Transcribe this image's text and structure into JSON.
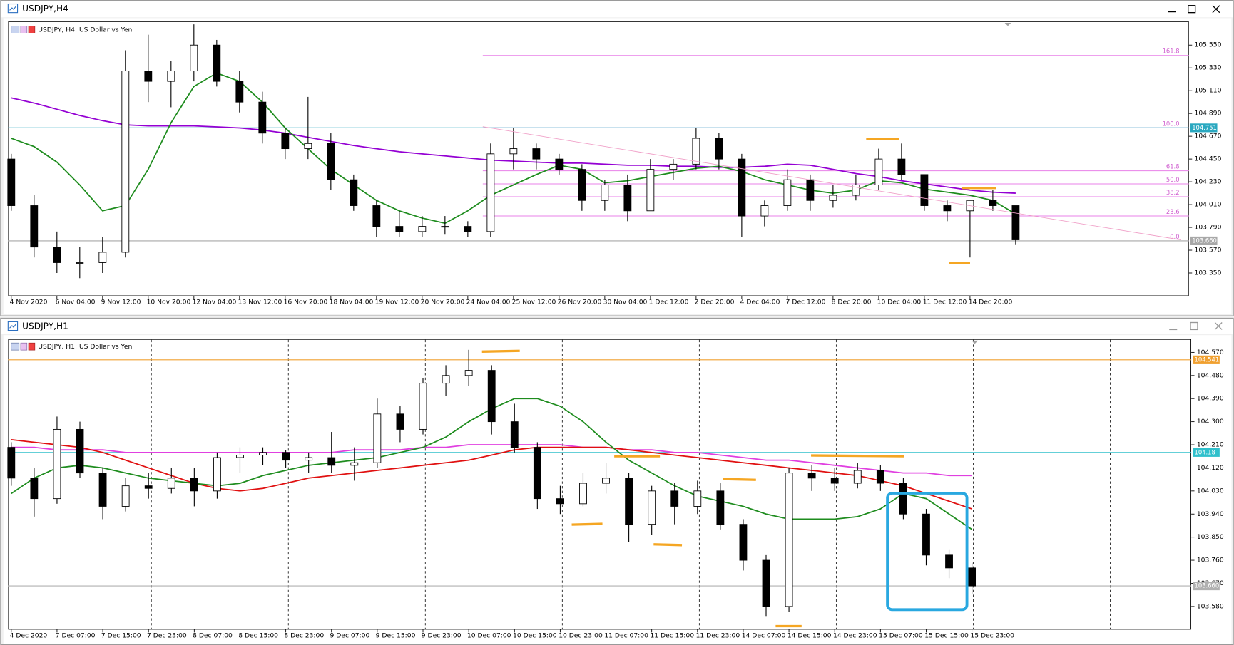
{
  "chart_data": [
    {
      "type": "candlestick",
      "window_title": "USDJPY,H4",
      "title": "USDJPY, H4:  US Dollar vs Yen",
      "up_color": "#ffffff",
      "down_color": "#000000",
      "open": [
        104.45,
        104.0,
        103.6,
        103.45,
        103.45,
        103.55,
        105.3,
        105.2,
        105.3,
        105.55,
        105.2,
        105.0,
        104.7,
        104.55,
        104.6,
        104.25,
        104.0,
        103.8,
        103.75,
        103.8,
        103.8,
        103.75,
        104.5,
        104.55,
        104.45,
        104.35,
        104.05,
        104.2,
        103.95,
        104.35,
        104.4,
        104.65,
        104.45,
        103.9,
        104.0,
        104.25,
        104.05,
        104.1,
        104.2,
        104.45,
        104.3,
        104.0,
        103.95,
        104.05,
        104.0
      ],
      "high": [
        104.5,
        104.1,
        103.75,
        103.6,
        103.7,
        105.5,
        105.65,
        105.4,
        105.75,
        105.6,
        105.3,
        105.1,
        104.75,
        105.05,
        104.7,
        104.3,
        104.05,
        103.95,
        103.9,
        103.9,
        103.85,
        104.6,
        104.75,
        104.6,
        104.5,
        104.4,
        104.25,
        104.3,
        104.45,
        104.45,
        104.75,
        104.7,
        104.5,
        104.05,
        104.35,
        104.3,
        104.2,
        104.3,
        104.55,
        104.6,
        104.3,
        104.05,
        104.05,
        104.15,
        104.0
      ],
      "low": [
        103.95,
        103.5,
        103.35,
        103.3,
        103.35,
        103.5,
        105.0,
        104.95,
        105.2,
        105.15,
        104.9,
        104.6,
        104.45,
        104.45,
        104.15,
        103.95,
        103.7,
        103.7,
        103.7,
        103.72,
        103.7,
        103.7,
        104.35,
        104.35,
        104.3,
        103.95,
        103.95,
        103.85,
        103.95,
        104.25,
        104.35,
        104.35,
        103.7,
        103.8,
        103.95,
        103.95,
        103.98,
        104.05,
        104.15,
        104.25,
        103.95,
        103.85,
        103.5,
        103.95,
        103.62
      ],
      "close": [
        104.0,
        103.6,
        103.45,
        103.45,
        103.55,
        105.3,
        105.2,
        105.3,
        105.55,
        105.2,
        105.0,
        104.7,
        104.55,
        104.6,
        104.25,
        104.0,
        103.8,
        103.75,
        103.8,
        103.8,
        103.75,
        104.5,
        104.55,
        104.45,
        104.35,
        104.05,
        104.2,
        103.95,
        104.35,
        104.4,
        104.65,
        104.45,
        103.9,
        104.0,
        104.25,
        104.05,
        104.1,
        104.2,
        104.45,
        104.3,
        104.0,
        103.95,
        104.05,
        104.0,
        103.67
      ],
      "series": [
        {
          "color": "#9400d3",
          "values": [
            105.04,
            104.99,
            104.93,
            104.87,
            104.82,
            104.78,
            104.77,
            104.77,
            104.77,
            104.76,
            104.75,
            104.73,
            104.7,
            104.66,
            104.62,
            104.58,
            104.55,
            104.52,
            104.5,
            104.48,
            104.46,
            104.44,
            104.43,
            104.42,
            104.41,
            104.41,
            104.4,
            104.39,
            104.39,
            104.38,
            104.38,
            104.37,
            104.37,
            104.38,
            104.4,
            104.39,
            104.35,
            104.31,
            104.28,
            104.24,
            104.21,
            104.18,
            104.15,
            104.13,
            104.12
          ]
        },
        {
          "color": "#1e8c1e",
          "values": [
            104.65,
            104.57,
            104.42,
            104.2,
            103.95,
            104.0,
            104.35,
            104.8,
            105.15,
            105.28,
            105.2,
            105.0,
            104.75,
            104.55,
            104.35,
            104.2,
            104.05,
            103.95,
            103.88,
            103.83,
            103.95,
            104.1,
            104.2,
            104.3,
            104.39,
            104.35,
            104.22,
            104.24,
            104.28,
            104.32,
            104.36,
            104.38,
            104.33,
            104.25,
            104.2,
            104.15,
            104.12,
            104.15,
            104.24,
            104.22,
            104.16,
            104.13,
            104.1,
            104.05,
            103.92
          ]
        }
      ],
      "hlines": [
        {
          "value": 104.751,
          "color": "#2aa8c0"
        },
        {
          "value": 103.66,
          "label": "103.660",
          "color": "#a8a8a8"
        }
      ],
      "fib_levels": [
        {
          "label": "161.8",
          "value": 105.45
        },
        {
          "label": "100.0",
          "value": 104.751
        },
        {
          "label": "61.8",
          "value": 104.336
        },
        {
          "label": "50.0",
          "value": 104.21
        },
        {
          "label": "38.2",
          "value": 104.086
        },
        {
          "label": "23.6",
          "value": 103.9
        },
        {
          "label": "0.0",
          "value": 103.66
        }
      ],
      "fib_color": "#e880e8",
      "xlim": [
        -0.14,
        51.59
      ],
      "xticks": [
        {
          "value": 0,
          "label": "4 Nov 2020"
        },
        {
          "value": 2,
          "label": "6 Nov 04:00"
        },
        {
          "value": 4,
          "label": "9 Nov 12:00"
        },
        {
          "value": 6,
          "label": "10 Nov 20:00"
        },
        {
          "value": 8,
          "label": "12 Nov 04:00"
        },
        {
          "value": 10,
          "label": "13 Nov 12:00"
        },
        {
          "value": 12,
          "label": "16 Nov 20:00"
        },
        {
          "value": 14,
          "label": "18 Nov 04:00"
        },
        {
          "value": 16,
          "label": "19 Nov 12:00"
        },
        {
          "value": 18,
          "label": "20 Nov 20:00"
        },
        {
          "value": 20,
          "label": "24 Nov 04:00"
        },
        {
          "value": 22,
          "label": "25 Nov 12:00"
        },
        {
          "value": 24,
          "label": "26 Nov 20:00"
        },
        {
          "value": 26,
          "label": "30 Nov 04:00"
        },
        {
          "value": 28,
          "label": "1 Dec 12:00"
        },
        {
          "value": 30,
          "label": "2 Dec 20:00"
        },
        {
          "value": 32,
          "label": "4 Dec 04:00"
        },
        {
          "value": 34,
          "label": "7 Dec 12:00"
        },
        {
          "value": 36,
          "label": "8 Dec 20:00"
        },
        {
          "value": 38,
          "label": "10 Dec 04:00"
        },
        {
          "value": 40,
          "label": "11 Dec 12:00"
        },
        {
          "value": 42,
          "label": "14 Dec 20:00"
        }
      ],
      "ylim": [
        103.13,
        105.78
      ],
      "yticks": [
        {
          "value": 105.55,
          "label": "105.550"
        },
        {
          "value": 105.33,
          "label": "105.330"
        },
        {
          "value": 105.11,
          "label": "105.110"
        },
        {
          "value": 104.89,
          "label": "104.890"
        },
        {
          "value": 104.67,
          "label": "104.670"
        },
        {
          "value": 104.45,
          "label": "104.450"
        },
        {
          "value": 104.23,
          "label": "104.230"
        },
        {
          "value": 104.01,
          "label": "104.010"
        },
        {
          "value": 103.79,
          "label": "103.790"
        },
        {
          "value": 103.57,
          "label": "103.570"
        },
        {
          "value": 103.35,
          "label": "103.350"
        }
      ]
    },
    {
      "type": "candlestick",
      "window_title": "USDJPY,H1",
      "title": "USDJPY, H1:  US Dollar vs Yen",
      "up_color": "#ffffff",
      "down_color": "#000000",
      "open": [
        104.2,
        104.08,
        104.0,
        104.27,
        104.1,
        103.97,
        104.05,
        104.04,
        104.08,
        104.03,
        104.16,
        104.17,
        104.18,
        104.15,
        104.16,
        104.13,
        104.14,
        104.33,
        104.27,
        104.45,
        104.48,
        104.5,
        104.3,
        104.2,
        104.0,
        103.98,
        104.06,
        104.08,
        103.9,
        104.03,
        103.97,
        104.03,
        103.9,
        103.76,
        103.58,
        104.1,
        104.08,
        104.06,
        104.11,
        104.06,
        103.94,
        103.78,
        103.73
      ],
      "high": [
        104.22,
        104.12,
        104.32,
        104.3,
        104.12,
        104.08,
        104.1,
        104.12,
        104.12,
        104.18,
        104.2,
        104.2,
        104.19,
        104.18,
        104.26,
        104.2,
        104.39,
        104.36,
        104.47,
        104.52,
        104.58,
        104.52,
        104.37,
        104.22,
        104.05,
        104.1,
        104.14,
        104.1,
        104.05,
        104.06,
        104.07,
        104.06,
        103.92,
        103.78,
        104.12,
        104.13,
        104.12,
        104.14,
        104.13,
        104.08,
        103.96,
        103.8,
        103.75
      ],
      "low": [
        104.05,
        103.93,
        103.98,
        104.08,
        103.92,
        103.95,
        104.0,
        104.02,
        103.97,
        104.0,
        104.1,
        104.13,
        104.12,
        104.1,
        104.1,
        104.07,
        104.12,
        104.22,
        104.25,
        104.4,
        104.44,
        104.25,
        104.18,
        103.96,
        103.94,
        103.97,
        104.02,
        103.83,
        103.86,
        103.9,
        103.94,
        103.88,
        103.72,
        103.54,
        103.56,
        104.03,
        104.03,
        104.04,
        104.03,
        103.92,
        103.74,
        103.69,
        103.63
      ],
      "close": [
        104.08,
        104.0,
        104.27,
        104.1,
        103.97,
        104.05,
        104.04,
        104.08,
        104.03,
        104.16,
        104.17,
        104.18,
        104.15,
        104.16,
        104.13,
        104.14,
        104.33,
        104.27,
        104.45,
        104.48,
        104.5,
        104.3,
        104.2,
        104.0,
        103.98,
        104.06,
        104.08,
        103.9,
        104.03,
        103.97,
        104.03,
        103.9,
        103.76,
        103.58,
        104.1,
        104.08,
        104.06,
        104.11,
        104.06,
        103.94,
        103.78,
        103.73,
        103.66
      ],
      "series": [
        {
          "color": "#e040e0",
          "values": [
            104.2,
            104.2,
            104.19,
            104.19,
            104.19,
            104.18,
            104.18,
            104.18,
            104.18,
            104.18,
            104.18,
            104.18,
            104.18,
            104.18,
            104.18,
            104.19,
            104.19,
            104.19,
            104.2,
            104.2,
            104.21,
            104.21,
            104.21,
            104.21,
            104.21,
            104.2,
            104.2,
            104.19,
            104.19,
            104.18,
            104.18,
            104.17,
            104.16,
            104.15,
            104.15,
            104.14,
            104.13,
            104.12,
            104.11,
            104.1,
            104.1,
            104.09,
            104.09
          ]
        },
        {
          "color": "#e01010",
          "values": [
            104.23,
            104.22,
            104.21,
            104.2,
            104.18,
            104.15,
            104.12,
            104.09,
            104.06,
            104.04,
            104.03,
            104.04,
            104.06,
            104.08,
            104.09,
            104.1,
            104.11,
            104.12,
            104.13,
            104.14,
            104.15,
            104.17,
            104.19,
            104.2,
            104.2,
            104.2,
            104.2,
            104.19,
            104.18,
            104.17,
            104.16,
            104.15,
            104.14,
            104.13,
            104.12,
            104.11,
            104.1,
            104.09,
            104.07,
            104.05,
            104.02,
            103.99,
            103.96
          ]
        },
        {
          "color": "#1e8c1e",
          "values": [
            104.02,
            104.08,
            104.12,
            104.13,
            104.12,
            104.1,
            104.08,
            104.07,
            104.06,
            104.05,
            104.06,
            104.09,
            104.11,
            104.13,
            104.14,
            104.15,
            104.16,
            104.18,
            104.2,
            104.24,
            104.3,
            104.35,
            104.39,
            104.39,
            104.36,
            104.3,
            104.22,
            104.15,
            104.1,
            104.05,
            104.01,
            103.99,
            103.97,
            103.94,
            103.92,
            103.92,
            103.92,
            103.93,
            103.96,
            104.02,
            104.0,
            103.94,
            103.88
          ]
        }
      ],
      "hlines": [
        {
          "value": 104.541,
          "color": "#f0a030"
        },
        {
          "value": 104.18,
          "color": "#30c0cc"
        },
        {
          "value": 103.66,
          "label": "103.660",
          "color": "#b0b0b0"
        }
      ],
      "xlim": [
        -0.14,
        51.59
      ],
      "xticks": [
        {
          "value": 0,
          "label": "4 Dec 2020"
        },
        {
          "value": 2,
          "label": "7 Dec 07:00"
        },
        {
          "value": 4,
          "label": "7 Dec 15:00"
        },
        {
          "value": 6,
          "label": "7 Dec 23:00"
        },
        {
          "value": 8,
          "label": "8 Dec 07:00"
        },
        {
          "value": 10,
          "label": "8 Dec 15:00"
        },
        {
          "value": 12,
          "label": "8 Dec 23:00"
        },
        {
          "value": 14,
          "label": "9 Dec 07:00"
        },
        {
          "value": 16,
          "label": "9 Dec 15:00"
        },
        {
          "value": 18,
          "label": "9 Dec 23:00"
        },
        {
          "value": 20,
          "label": "10 Dec 07:00"
        },
        {
          "value": 22,
          "label": "10 Dec 15:00"
        },
        {
          "value": 24,
          "label": "10 Dec 23:00"
        },
        {
          "value": 26,
          "label": "11 Dec 07:00"
        },
        {
          "value": 28,
          "label": "11 Dec 15:00"
        },
        {
          "value": 30,
          "label": "11 Dec 23:00"
        },
        {
          "value": 32,
          "label": "14 Dec 07:00"
        },
        {
          "value": 34,
          "label": "14 Dec 15:00"
        },
        {
          "value": 36,
          "label": "14 Dec 23:00"
        },
        {
          "value": 38,
          "label": "15 Dec 07:00"
        },
        {
          "value": 40,
          "label": "15 Dec 15:00"
        },
        {
          "value": 42,
          "label": "15 Dec 23:00"
        }
      ],
      "ylim": [
        103.491,
        104.622
      ],
      "yticks": [
        {
          "value": 104.57,
          "label": "104.570"
        },
        {
          "value": 104.48,
          "label": "104.480"
        },
        {
          "value": 104.39,
          "label": "104.390"
        },
        {
          "value": 104.3,
          "label": "104.300"
        },
        {
          "value": 104.21,
          "label": "104.210"
        },
        {
          "value": 104.12,
          "label": "104.120"
        },
        {
          "value": 104.03,
          "label": "104.030"
        },
        {
          "value": 103.94,
          "label": "103.940"
        },
        {
          "value": 103.85,
          "label": "103.850"
        },
        {
          "value": 103.76,
          "label": "103.760"
        },
        {
          "value": 103.67,
          "label": "103.670"
        },
        {
          "value": 103.58,
          "label": "103.580"
        }
      ]
    }
  ]
}
